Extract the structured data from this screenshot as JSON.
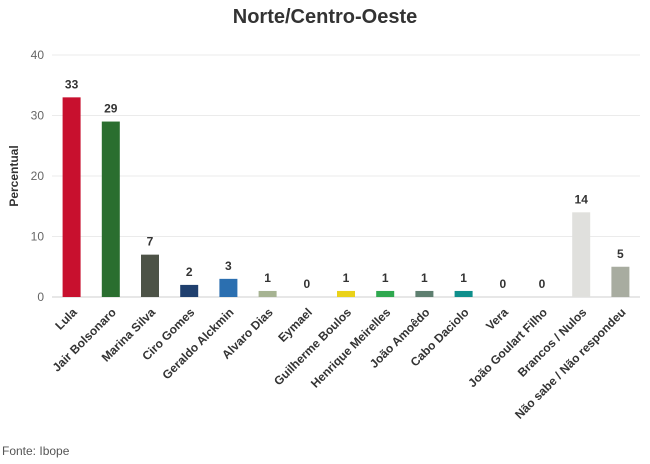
{
  "chart_data": {
    "type": "bar",
    "title": "Norte/Centro-Oeste",
    "ylabel": "Percentual",
    "xlabel": "",
    "ylim": [
      0,
      40
    ],
    "yticks": [
      0,
      10,
      20,
      30,
      40
    ],
    "grid": true,
    "categories": [
      "Lula",
      "Jair Bolsonaro",
      "Marina Silva",
      "Ciro Gomes",
      "Geraldo Alckmin",
      "Alvaro Dias",
      "Eymael",
      "Guilherme Boulos",
      "Henrique Meirelles",
      "João Amoêdo",
      "Cabo Daciolo",
      "Vera",
      "João Goulart Filho",
      "Brancos / Nulos",
      "Não sabe / Não respondeu"
    ],
    "values": [
      33,
      29,
      7,
      2,
      3,
      1,
      0,
      1,
      1,
      1,
      1,
      0,
      0,
      14,
      5
    ],
    "colors": [
      "#c8102e",
      "#2a6e2f",
      "#4d5347",
      "#1f3f6e",
      "#2b6fb0",
      "#a6b392",
      "#cccccc",
      "#ead21a",
      "#2fa84f",
      "#5e7f70",
      "#0f8f8c",
      "#cccccc",
      "#cccccc",
      "#e0e0dd",
      "#a8aca0"
    ]
  },
  "source": "Fonte: Ibope"
}
